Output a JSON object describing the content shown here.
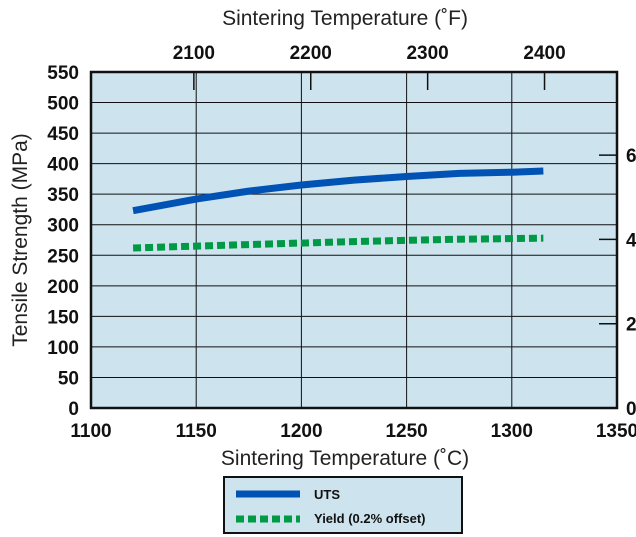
{
  "chart_data": {
    "type": "line",
    "top_axis_label": "Sintering Temperature (˚F)",
    "xlabel": "Sintering Temperature (˚C)",
    "ylabel": "Tensile Strength (MPa)",
    "xlim": [
      1100,
      1350
    ],
    "ylim": [
      0,
      550
    ],
    "x_ticks": [
      "1100",
      "1150",
      "1200",
      "1250",
      "1300",
      "1350"
    ],
    "y_ticks": [
      "0",
      "50",
      "100",
      "150",
      "200",
      "250",
      "300",
      "350",
      "400",
      "450",
      "500",
      "550"
    ],
    "top_ticks": [
      {
        "label": "2100",
        "f": 2100
      },
      {
        "label": "2200",
        "f": 2200
      },
      {
        "label": "2300",
        "f": 2300
      },
      {
        "label": "2400",
        "f": 2400
      }
    ],
    "right_ticks": [
      {
        "label": "6",
        "mpa": 414
      },
      {
        "label": "4",
        "mpa": 276
      },
      {
        "label": "2",
        "mpa": 138
      },
      {
        "label": "0",
        "mpa": 0
      }
    ],
    "grid": true,
    "legend_position": "bottom-center",
    "background_color": "#cde3ee",
    "series": [
      {
        "name": "UTS",
        "style": "solid",
        "color": "#0052b4",
        "x": [
          1120,
          1150,
          1175,
          1200,
          1225,
          1250,
          1275,
          1300,
          1315
        ],
        "y": [
          323,
          342,
          355,
          365,
          373,
          379,
          384,
          386,
          388
        ]
      },
      {
        "name": "Yield (0.2% offset)",
        "style": "dashed",
        "color": "#009946",
        "x": [
          1120,
          1170,
          1220,
          1270,
          1315
        ],
        "y": [
          262,
          267,
          272,
          276,
          278
        ]
      }
    ]
  }
}
